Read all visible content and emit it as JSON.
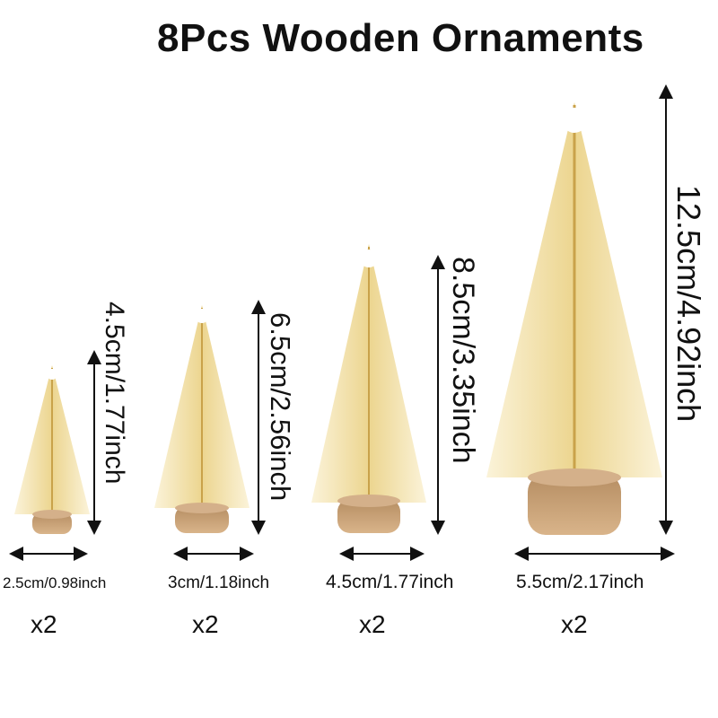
{
  "title": "8Pcs Wooden Ornaments",
  "colors": {
    "foliage_light": "#f6ecc8",
    "foliage_gold": "#d9b65a",
    "snow": "#ffffff",
    "wood": "#c9a27a",
    "wood_dark": "#9c7651"
  },
  "trees": [
    {
      "height_label": "4.5cm/1.77inch",
      "width_label": "2.5cm/0.98inch",
      "quantity": "x2"
    },
    {
      "height_label": "6.5cm/2.56inch",
      "width_label": "3cm/1.18inch",
      "quantity": "x2"
    },
    {
      "height_label": "8.5cm/3.35inch",
      "width_label": "4.5cm/1.77inch",
      "quantity": "x2"
    },
    {
      "height_label": "12.5cm/4.92inch",
      "width_label": "5.5cm/2.17inch",
      "quantity": "x2"
    }
  ]
}
